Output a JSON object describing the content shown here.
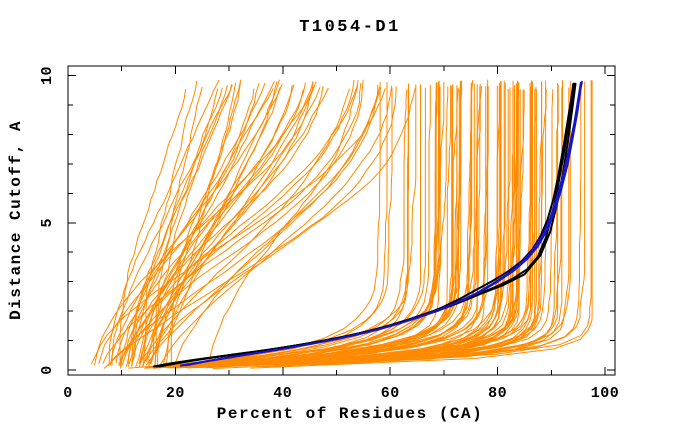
{
  "window": {
    "background": "#ffffff"
  },
  "chart_data": {
    "type": "line",
    "title": "T1054-D1",
    "xlabel": "Percent of Residues (CA)",
    "ylabel": "Distance Cutoff, A",
    "xlim": [
      0,
      101.8
    ],
    "ylim": [
      -0.2,
      10.35
    ],
    "x_ticks_major": [
      0,
      20,
      40,
      60,
      80,
      100
    ],
    "x_ticks_minor": [
      10,
      30,
      50,
      70,
      90
    ],
    "y_ticks_major": [
      0,
      5,
      10
    ],
    "y_ticks_minor": [
      1,
      2,
      3,
      4,
      6,
      7,
      8,
      9
    ],
    "grid": false,
    "legend": "none",
    "frame": true,
    "colors": {
      "ensemble": "#FF8A00",
      "highlight_black": "#000000",
      "highlight_blue": "#1616C8",
      "axis": "#000000"
    },
    "ensemble": {
      "name": "model GDT curves (orange)",
      "count": 135,
      "seed": 20541,
      "x_start_range": [
        3.5,
        28
      ],
      "y_bottom_range": [
        0.05,
        0.3
      ],
      "y_top_range": [
        9.5,
        9.85
      ],
      "x_max_clip": 97.6,
      "end_distribution": [
        {
          "weight": 0.02,
          "range": [
            22,
            25
          ]
        },
        {
          "weight": 0.14,
          "range": [
            28,
            45
          ]
        },
        {
          "weight": 0.22,
          "range": [
            45,
            68
          ]
        },
        {
          "weight": 0.5,
          "range": [
            68,
            91
          ]
        },
        {
          "weight": 0.12,
          "range": [
            91,
            97.5
          ]
        }
      ]
    },
    "highlight_series": [
      {
        "name": "model-black-1",
        "color": "#000000",
        "width": 2,
        "points": [
          [
            16,
            0.12
          ],
          [
            19,
            0.22
          ],
          [
            23,
            0.33
          ],
          [
            27,
            0.43
          ],
          [
            31,
            0.52
          ],
          [
            35,
            0.62
          ],
          [
            39,
            0.73
          ],
          [
            43,
            0.85
          ],
          [
            47,
            0.98
          ],
          [
            51,
            1.12
          ],
          [
            55,
            1.28
          ],
          [
            59,
            1.46
          ],
          [
            63,
            1.67
          ],
          [
            67,
            1.92
          ],
          [
            70,
            2.15
          ],
          [
            73,
            2.42
          ],
          [
            76,
            2.72
          ],
          [
            79,
            3.02
          ],
          [
            82,
            3.35
          ],
          [
            84.5,
            3.7
          ],
          [
            86.5,
            4.1
          ],
          [
            88,
            4.55
          ],
          [
            89.3,
            5.1
          ],
          [
            90.4,
            5.8
          ],
          [
            91.3,
            6.6
          ],
          [
            92.2,
            7.5
          ],
          [
            93,
            8.4
          ],
          [
            93.7,
            9.2
          ],
          [
            94.1,
            9.72
          ]
        ]
      },
      {
        "name": "model-black-2",
        "color": "#000000",
        "width": 2,
        "points": [
          [
            16.5,
            0.12
          ],
          [
            20,
            0.24
          ],
          [
            24,
            0.35
          ],
          [
            28,
            0.45
          ],
          [
            32,
            0.55
          ],
          [
            36,
            0.65
          ],
          [
            40,
            0.76
          ],
          [
            44,
            0.88
          ],
          [
            48,
            1.0
          ],
          [
            52,
            1.15
          ],
          [
            56,
            1.32
          ],
          [
            60,
            1.52
          ],
          [
            64,
            1.75
          ],
          [
            68,
            2.0
          ],
          [
            72,
            2.28
          ],
          [
            76,
            2.55
          ],
          [
            80,
            2.85
          ],
          [
            83,
            3.12
          ],
          [
            85.5,
            3.42
          ],
          [
            87.5,
            3.85
          ],
          [
            89,
            4.5
          ],
          [
            90.2,
            5.3
          ],
          [
            91.2,
            6.2
          ],
          [
            92.2,
            7.2
          ],
          [
            93.1,
            8.2
          ],
          [
            93.8,
            9.1
          ],
          [
            94.3,
            9.72
          ]
        ]
      },
      {
        "name": "model-black-3",
        "color": "#000000",
        "width": 2,
        "points": [
          [
            17,
            0.12
          ],
          [
            21,
            0.25
          ],
          [
            25,
            0.37
          ],
          [
            29,
            0.48
          ],
          [
            33,
            0.58
          ],
          [
            37,
            0.68
          ],
          [
            41,
            0.79
          ],
          [
            45,
            0.91
          ],
          [
            49,
            1.04
          ],
          [
            53,
            1.19
          ],
          [
            57,
            1.36
          ],
          [
            61,
            1.56
          ],
          [
            65,
            1.78
          ],
          [
            69,
            2.02
          ],
          [
            73,
            2.3
          ],
          [
            77,
            2.6
          ],
          [
            81,
            2.88
          ],
          [
            85,
            3.25
          ],
          [
            88,
            3.9
          ],
          [
            89.8,
            4.7
          ],
          [
            91,
            5.6
          ],
          [
            92.2,
            6.7
          ],
          [
            93.2,
            7.9
          ],
          [
            94,
            9.0
          ],
          [
            94.5,
            9.72
          ]
        ]
      },
      {
        "name": "model-blue-1",
        "color": "#1616C8",
        "width": 2,
        "points": [
          [
            21,
            0.15
          ],
          [
            25,
            0.28
          ],
          [
            29,
            0.4
          ],
          [
            33,
            0.52
          ],
          [
            37,
            0.63
          ],
          [
            41,
            0.75
          ],
          [
            45,
            0.88
          ],
          [
            49,
            1.02
          ],
          [
            53,
            1.17
          ],
          [
            57,
            1.34
          ],
          [
            61,
            1.54
          ],
          [
            65,
            1.77
          ],
          [
            69,
            2.03
          ],
          [
            72.5,
            2.3
          ],
          [
            76,
            2.6
          ],
          [
            79,
            2.92
          ],
          [
            82,
            3.27
          ],
          [
            84.5,
            3.65
          ],
          [
            86.5,
            4.05
          ],
          [
            88.3,
            4.55
          ],
          [
            89.8,
            5.15
          ],
          [
            91,
            5.85
          ],
          [
            92.2,
            6.6
          ],
          [
            93.3,
            7.5
          ],
          [
            94.3,
            8.4
          ],
          [
            95.1,
            9.3
          ],
          [
            95.5,
            9.75
          ]
        ]
      },
      {
        "name": "model-blue-2",
        "color": "#1616C8",
        "width": 2,
        "points": [
          [
            22,
            0.16
          ],
          [
            26,
            0.3
          ],
          [
            30,
            0.42
          ],
          [
            34,
            0.54
          ],
          [
            38,
            0.66
          ],
          [
            42,
            0.78
          ],
          [
            46,
            0.91
          ],
          [
            50,
            1.05
          ],
          [
            54,
            1.21
          ],
          [
            58,
            1.39
          ],
          [
            62,
            1.6
          ],
          [
            66,
            1.84
          ],
          [
            70,
            2.1
          ],
          [
            73.5,
            2.38
          ],
          [
            77,
            2.68
          ],
          [
            80,
            3.0
          ],
          [
            83,
            3.37
          ],
          [
            85.5,
            3.77
          ],
          [
            87.5,
            4.2
          ],
          [
            89.2,
            4.75
          ],
          [
            90.6,
            5.4
          ],
          [
            91.8,
            6.1
          ],
          [
            93,
            6.95
          ],
          [
            94,
            7.9
          ],
          [
            94.9,
            8.8
          ],
          [
            95.5,
            9.6
          ],
          [
            95.7,
            9.78
          ]
        ]
      }
    ],
    "layout_hints": {
      "tick_direction": "in",
      "ticks_on_all_sides": true,
      "y_tick_labels_rotated": true
    }
  }
}
